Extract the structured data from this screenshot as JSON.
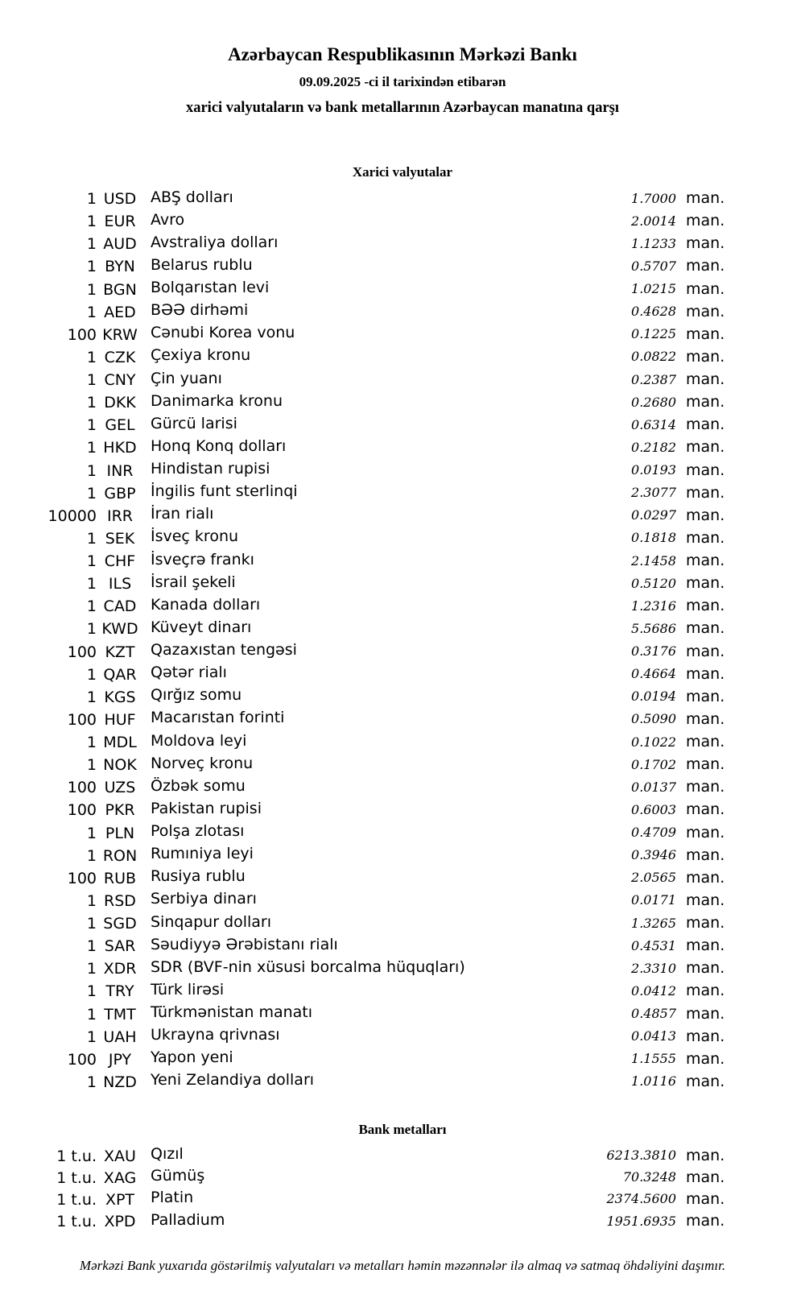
{
  "header": {
    "bank_name": "Azərbaycan Respublikasının Mərkəzi Bankı",
    "effective_date_line": "09.09.2025 -ci il tarixindən etibarən",
    "description_line": "xarici valyutaların və bank metallarının Azərbaycan manatına qarşı"
  },
  "currency_section": {
    "heading": "Xarici valyutalar"
  },
  "metals_section": {
    "heading": "Bank metalları"
  },
  "rate_unit": "man.",
  "currencies": [
    {
      "qty": "1",
      "code": "USD",
      "name": "ABŞ dolları",
      "rate": "1.7000"
    },
    {
      "qty": "1",
      "code": "EUR",
      "name": "Avro",
      "rate": "2.0014"
    },
    {
      "qty": "1",
      "code": "AUD",
      "name": "Avstraliya dolları",
      "rate": "1.1233"
    },
    {
      "qty": "1",
      "code": "BYN",
      "name": "Belarus rublu",
      "rate": "0.5707"
    },
    {
      "qty": "1",
      "code": "BGN",
      "name": "Bolqarıstan levi",
      "rate": "1.0215"
    },
    {
      "qty": "1",
      "code": "AED",
      "name": "BƏƏ dirhəmi",
      "rate": "0.4628"
    },
    {
      "qty": "100",
      "code": "KRW",
      "name": "Cənubi Korea vonu",
      "rate": "0.1225"
    },
    {
      "qty": "1",
      "code": "CZK",
      "name": "Çexiya kronu",
      "rate": "0.0822"
    },
    {
      "qty": "1",
      "code": "CNY",
      "name": "Çin yuanı",
      "rate": "0.2387"
    },
    {
      "qty": "1",
      "code": "DKK",
      "name": "Danimarka kronu",
      "rate": "0.2680"
    },
    {
      "qty": "1",
      "code": "GEL",
      "name": "Gürcü larisi",
      "rate": "0.6314"
    },
    {
      "qty": "1",
      "code": "HKD",
      "name": "Honq Konq dolları",
      "rate": "0.2182"
    },
    {
      "qty": "1",
      "code": "INR",
      "name": "Hindistan rupisi",
      "rate": "0.0193"
    },
    {
      "qty": "1",
      "code": "GBP",
      "name": "İngilis funt sterlinqi",
      "rate": "2.3077"
    },
    {
      "qty": "10000",
      "code": "IRR",
      "name": "İran rialı",
      "rate": "0.0297"
    },
    {
      "qty": "1",
      "code": "SEK",
      "name": "İsveç kronu",
      "rate": "0.1818"
    },
    {
      "qty": "1",
      "code": "CHF",
      "name": "İsveçrə frankı",
      "rate": "2.1458"
    },
    {
      "qty": "1",
      "code": "ILS",
      "name": "İsrail şekeli",
      "rate": "0.5120"
    },
    {
      "qty": "1",
      "code": "CAD",
      "name": "Kanada dolları",
      "rate": "1.2316"
    },
    {
      "qty": "1",
      "code": "KWD",
      "name": "Küveyt dinarı",
      "rate": "5.5686"
    },
    {
      "qty": "100",
      "code": "KZT",
      "name": "Qazaxıstan tengəsi",
      "rate": "0.3176"
    },
    {
      "qty": "1",
      "code": "QAR",
      "name": "Qətər rialı",
      "rate": "0.4664"
    },
    {
      "qty": "1",
      "code": "KGS",
      "name": "Qırğız somu",
      "rate": "0.0194"
    },
    {
      "qty": "100",
      "code": "HUF",
      "name": "Macarıstan forinti",
      "rate": "0.5090"
    },
    {
      "qty": "1",
      "code": "MDL",
      "name": "Moldova leyi",
      "rate": "0.1022"
    },
    {
      "qty": "1",
      "code": "NOK",
      "name": "Norveç kronu",
      "rate": "0.1702"
    },
    {
      "qty": "100",
      "code": "UZS",
      "name": "Özbək somu",
      "rate": "0.0137"
    },
    {
      "qty": "100",
      "code": "PKR",
      "name": "Pakistan rupisi",
      "rate": "0.6003"
    },
    {
      "qty": "1",
      "code": "PLN",
      "name": "Polşa zlotası",
      "rate": "0.4709"
    },
    {
      "qty": "1",
      "code": "RON",
      "name": "Rumıniya leyi",
      "rate": "0.3946"
    },
    {
      "qty": "100",
      "code": "RUB",
      "name": "Rusiya rublu",
      "rate": "2.0565"
    },
    {
      "qty": "1",
      "code": "RSD",
      "name": "Serbiya dinarı",
      "rate": "0.0171"
    },
    {
      "qty": "1",
      "code": "SGD",
      "name": "Sinqapur dolları",
      "rate": "1.3265"
    },
    {
      "qty": "1",
      "code": "SAR",
      "name": "Səudiyyə Ərəbistanı rialı",
      "rate": "0.4531"
    },
    {
      "qty": "1",
      "code": "XDR",
      "name": "SDR (BVF-nin xüsusi borcalma hüquqları)",
      "rate": "2.3310"
    },
    {
      "qty": "1",
      "code": "TRY",
      "name": "Türk lirəsi",
      "rate": "0.0412"
    },
    {
      "qty": "1",
      "code": "TMT",
      "name": "Türkmənistan manatı",
      "rate": "0.4857"
    },
    {
      "qty": "1",
      "code": "UAH",
      "name": "Ukrayna qrivnası",
      "rate": "0.0413"
    },
    {
      "qty": "100",
      "code": "JPY",
      "name": "Yapon yeni",
      "rate": "1.1555"
    },
    {
      "qty": "1",
      "code": "NZD",
      "name": "Yeni Zelandiya dolları",
      "rate": "1.0116"
    }
  ],
  "metals": [
    {
      "qty": "1 t.u.",
      "code": "XAU",
      "name": "Qızıl",
      "rate": "6213.3810"
    },
    {
      "qty": "1 t.u.",
      "code": "XAG",
      "name": "Gümüş",
      "rate": "70.3248"
    },
    {
      "qty": "1 t.u.",
      "code": "XPT",
      "name": "Platin",
      "rate": "2374.5600"
    },
    {
      "qty": "1 t.u.",
      "code": "XPD",
      "name": "Palladium",
      "rate": "1951.6935"
    }
  ],
  "footer": {
    "note": "Mərkəzi Bank yuxarıda göstərilmiş valyutaları və metalları həmin məzənnələr ilə almaq və satmaq öhdəliyini daşımır."
  }
}
